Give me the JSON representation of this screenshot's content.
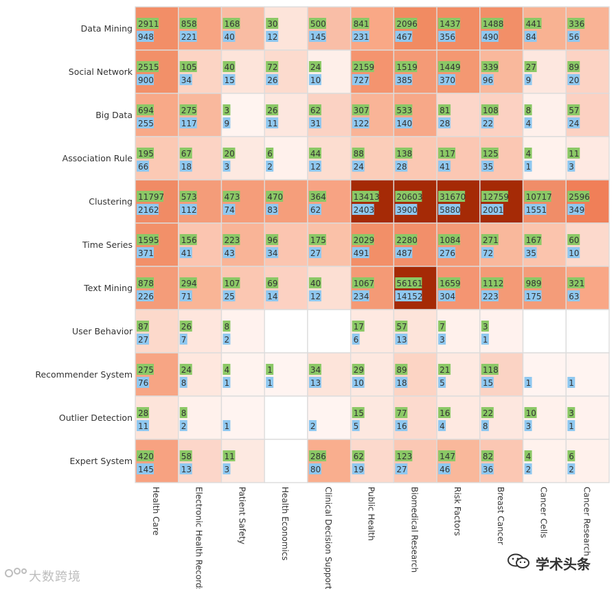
{
  "chart_data": {
    "type": "heatmap",
    "title": "",
    "rows": [
      "Data Mining",
      "Social Network",
      "Big Data",
      "Association Rule",
      "Clustering",
      "Time Series",
      "Text Mining",
      "User Behavior",
      "Recommender System",
      "Outlier Detection",
      "Expert System"
    ],
    "columns": [
      "Health Care",
      "Electronic Health Records",
      "Patient Safety",
      "Health Economics",
      "Clinical Decision Support",
      "Public Health",
      "Biomedical Research",
      "Risk Factors",
      "Breast Cancer",
      "Cancer Cells",
      "Cancer Research"
    ],
    "series": [
      {
        "name": "green",
        "color": "#8bc866",
        "values": [
          [
            2911,
            858,
            168,
            30,
            500,
            841,
            2096,
            1437,
            1488,
            441,
            336
          ],
          [
            2515,
            105,
            40,
            72,
            24,
            2159,
            1519,
            1449,
            339,
            27,
            89
          ],
          [
            694,
            275,
            3,
            26,
            62,
            307,
            533,
            81,
            108,
            8,
            57
          ],
          [
            195,
            67,
            20,
            6,
            44,
            88,
            138,
            117,
            125,
            4,
            11
          ],
          [
            11797,
            573,
            473,
            470,
            364,
            13413,
            20603,
            31670,
            12759,
            10717,
            2596
          ],
          [
            1595,
            156,
            223,
            96,
            175,
            2029,
            2280,
            1084,
            271,
            167,
            60
          ],
          [
            878,
            294,
            107,
            69,
            40,
            1067,
            56161,
            1659,
            1112,
            989,
            321
          ],
          [
            87,
            26,
            8,
            null,
            null,
            17,
            57,
            7,
            3,
            null,
            null
          ],
          [
            275,
            24,
            4,
            1,
            34,
            29,
            89,
            21,
            118,
            null,
            null
          ],
          [
            28,
            8,
            null,
            null,
            null,
            15,
            77,
            16,
            22,
            10,
            3
          ],
          [
            420,
            58,
            11,
            null,
            286,
            62,
            123,
            147,
            82,
            4,
            6
          ]
        ]
      },
      {
        "name": "blue",
        "color": "#8fc8f0",
        "values": [
          [
            948,
            221,
            40,
            12,
            145,
            231,
            467,
            356,
            490,
            84,
            56
          ],
          [
            900,
            34,
            15,
            26,
            10,
            727,
            385,
            370,
            96,
            9,
            20
          ],
          [
            255,
            117,
            9,
            11,
            31,
            122,
            140,
            28,
            22,
            4,
            24
          ],
          [
            66,
            18,
            3,
            2,
            12,
            24,
            28,
            41,
            35,
            1,
            3
          ],
          [
            2162,
            112,
            74,
            83,
            62,
            2403,
            3900,
            5880,
            2001,
            1551,
            349
          ],
          [
            371,
            41,
            43,
            34,
            27,
            491,
            487,
            276,
            72,
            35,
            10
          ],
          [
            226,
            71,
            25,
            14,
            12,
            234,
            14152,
            304,
            223,
            175,
            63
          ],
          [
            27,
            7,
            2,
            null,
            null,
            6,
            13,
            3,
            1,
            null,
            null
          ],
          [
            76,
            8,
            1,
            1,
            13,
            10,
            18,
            5,
            15,
            1,
            1
          ],
          [
            11,
            2,
            1,
            null,
            2,
            5,
            16,
            4,
            8,
            3,
            1
          ],
          [
            145,
            13,
            3,
            null,
            80,
            19,
            27,
            46,
            36,
            2,
            2
          ]
        ]
      }
    ],
    "cell_colors": [
      [
        "#f28e67",
        "#f7a482",
        "#f9bca3",
        "#fde4da",
        "#f9bea7",
        "#f9a886",
        "#f18b62",
        "#f18c64",
        "#f28f68",
        "#f8b292",
        "#f9b395"
      ],
      [
        "#f29069",
        "#fcd4c4",
        "#fde4da",
        "#fcdbce",
        "#feefe9",
        "#f4946f",
        "#f49a76",
        "#f49872",
        "#f9b89c",
        "#fde7df",
        "#fcd3c4"
      ],
      [
        "#f8a988",
        "#f9b89d",
        "#fff4f0",
        "#fde7df",
        "#fbd2c3",
        "#f9b497",
        "#f7a888",
        "#fcd6c9",
        "#fcd1c2",
        "#fef0eb",
        "#fcd1c2"
      ],
      [
        "#fbc9b4",
        "#fcd3c4",
        "#fde9e1",
        "#fff1ec",
        "#fcddd0",
        "#fbcdb9",
        "#fbc8b3",
        "#fbc7b3",
        "#fbc7b3",
        "#fff2ed",
        "#fee9e2"
      ],
      [
        "#f08b65",
        "#f49c79",
        "#f59d7a",
        "#f59e7b",
        "#f7a383",
        "#a52a06",
        "#a52a06",
        "#a52a06",
        "#a52a06",
        "#f08d68",
        "#f07f58"
      ],
      [
        "#f29069",
        "#fbc5b0",
        "#f9b497",
        "#fbc5b0",
        "#fac1a8",
        "#f28f68",
        "#f28f6a",
        "#f49a76",
        "#f9b89c",
        "#fbc4ad",
        "#fcd9cc"
      ],
      [
        "#f49c79",
        "#f9b596",
        "#fbc7b2",
        "#fcd1c2",
        "#fcdfd3",
        "#f49a76",
        "#a52a06",
        "#f49572",
        "#f49a76",
        "#f49c79",
        "#f9a786"
      ],
      [
        "#fcd9cb",
        "#fee6dd",
        "#fff2ee",
        "#ffffff",
        "#ffffff",
        "#fee9e1",
        "#fde4da",
        "#fff1ec",
        "#fff2ee",
        "#ffffff",
        "#ffffff"
      ],
      [
        "#f7a584",
        "#fee7de",
        "#fff3ef",
        "#fff4f1",
        "#fde4da",
        "#fde8e0",
        "#fcd4c4",
        "#fee9e1",
        "#fbd3c4",
        "#fff4f1",
        "#fff4f1"
      ],
      [
        "#fde4da",
        "#fff1ec",
        "#fff4f1",
        "#ffffff",
        "#fff4f1",
        "#fde8e0",
        "#fcdace",
        "#fee9e1",
        "#fde7df",
        "#fff1ec",
        "#fff2ee"
      ],
      [
        "#f7a281",
        "#fcd6c9",
        "#fde9e1",
        "#ffffff",
        "#f9ae8e",
        "#fcd9cc",
        "#fbc8b4",
        "#f9b89b",
        "#fbc7b3",
        "#fff2ed",
        "#fff1ec"
      ]
    ]
  },
  "watermark": {
    "left_text": "大数跨境",
    "right_text": "学术头条"
  }
}
